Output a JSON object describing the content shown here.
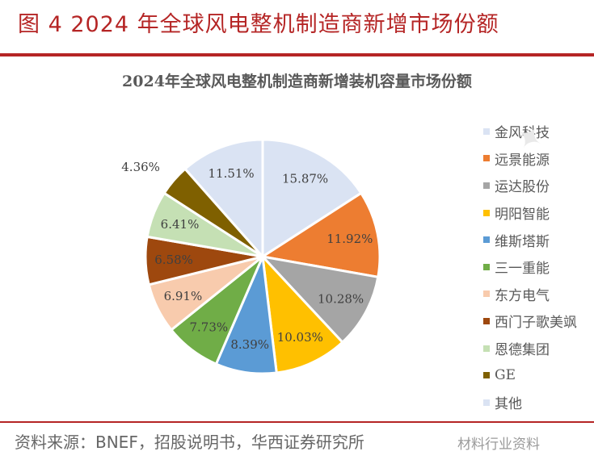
{
  "figure_title": "图 4 2024 年全球风电整机制造商新增市场份额",
  "colors": {
    "accent": "#b52525",
    "title_text": "#595959"
  },
  "chart_data": {
    "type": "pie",
    "title": "2024年全球风电整机制造商新增装机容量市场份额",
    "legend_position": "right",
    "slices": [
      {
        "label": "金风科技",
        "value": 15.87,
        "value_label": "15.87%",
        "color": "#dae3f3"
      },
      {
        "label": "远景能源",
        "value": 11.92,
        "value_label": "11.92%",
        "color": "#ed7d31"
      },
      {
        "label": "运达股份",
        "value": 10.28,
        "value_label": "10.28%",
        "color": "#a5a5a5"
      },
      {
        "label": "明阳智能",
        "value": 10.03,
        "value_label": "10.03%",
        "color": "#ffc000"
      },
      {
        "label": "维斯塔斯",
        "value": 8.39,
        "value_label": "8.39%",
        "color": "#5b9bd5"
      },
      {
        "label": "三一重能",
        "value": 7.73,
        "value_label": "7.73%",
        "color": "#70ad47"
      },
      {
        "label": "东方电气",
        "value": 6.91,
        "value_label": "6.91%",
        "color": "#f8cbad"
      },
      {
        "label": "西门子歌美飒",
        "value": 6.58,
        "value_label": "6.58%",
        "color": "#9e480e"
      },
      {
        "label": "恩德集团",
        "value": 6.41,
        "value_label": "6.41%",
        "color": "#c5e0b4"
      },
      {
        "label": "GE",
        "value": 4.36,
        "value_label": "4.36%",
        "color": "#7f6000"
      },
      {
        "label": "其他",
        "value": 11.51,
        "value_label": "11.51%",
        "color": "#dae3f3"
      }
    ]
  },
  "source": "资料来源：BNEF，招股说明书，华西证券研究所",
  "watermark_text": "材料行业资料"
}
